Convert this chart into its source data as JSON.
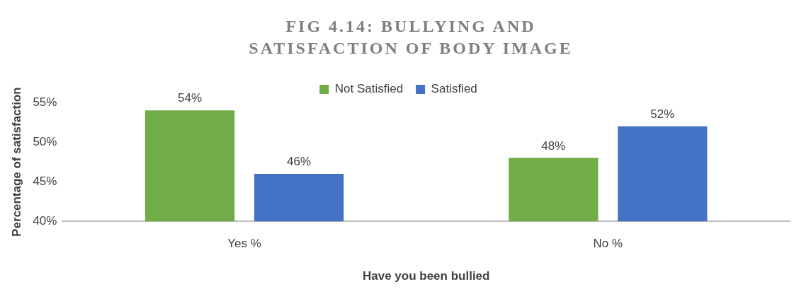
{
  "chart_data": {
    "type": "bar",
    "title": "FIG 4.14: BULLYING AND SATISFACTION OF BODY IMAGE",
    "xlabel": "Have you been bullied",
    "ylabel": "Percentage of satisfaction",
    "categories": [
      "Yes %",
      "No %"
    ],
    "series": [
      {
        "name": "Not Satisfied",
        "color": "#70ad47",
        "values": [
          54,
          48
        ],
        "value_labels": [
          "54%",
          "48%"
        ]
      },
      {
        "name": "Satisfied",
        "color": "#4472c4",
        "values": [
          46,
          52
        ],
        "value_labels": [
          "46%",
          "52%"
        ]
      }
    ],
    "ylim": [
      40,
      55
    ],
    "yticks": [
      {
        "value": 40,
        "label": "40%"
      },
      {
        "value": 45,
        "label": "45%"
      },
      {
        "value": 50,
        "label": "50%"
      },
      {
        "value": 55,
        "label": "55%"
      }
    ],
    "grid": false,
    "legend": "top"
  }
}
